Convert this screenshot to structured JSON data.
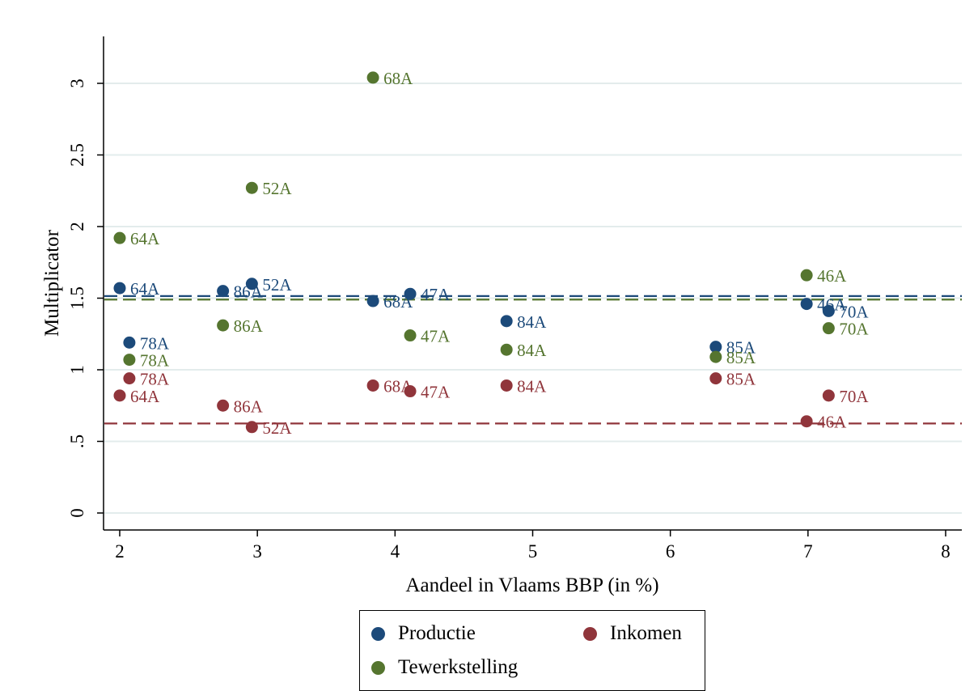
{
  "chart_data": {
    "type": "scatter",
    "title": "",
    "xlabel": "Aandeel in Vlaams BBP (in %)",
    "ylabel": "Multiplicator",
    "xlim": [
      1.9,
      8.1
    ],
    "ylim": [
      -0.1,
      3.3
    ],
    "xticks": [
      2,
      3,
      4,
      5,
      6,
      7,
      8
    ],
    "xtick_labels": [
      "2",
      "3",
      "4",
      "5",
      "6",
      "7",
      "8"
    ],
    "yticks": [
      0,
      0.5,
      1,
      1.5,
      2,
      2.5,
      3
    ],
    "ytick_labels": [
      "0",
      ".5",
      "1",
      "1.5",
      "2",
      "2.5",
      "3"
    ],
    "grid": "horizontal",
    "legend_position": "bottom",
    "series": [
      {
        "name": "Productie",
        "color": "#1c4a7a",
        "mean_line": 1.515,
        "points": [
          {
            "label": "64A",
            "x": 2.0,
            "y": 1.57
          },
          {
            "label": "78A",
            "x": 2.07,
            "y": 1.19
          },
          {
            "label": "86A",
            "x": 2.75,
            "y": 1.55
          },
          {
            "label": "52A",
            "x": 2.96,
            "y": 1.6
          },
          {
            "label": "68A",
            "x": 3.84,
            "y": 1.48
          },
          {
            "label": "47A",
            "x": 4.11,
            "y": 1.53
          },
          {
            "label": "84A",
            "x": 4.81,
            "y": 1.34
          },
          {
            "label": "85A",
            "x": 6.33,
            "y": 1.16
          },
          {
            "label": "46A",
            "x": 6.99,
            "y": 1.46
          },
          {
            "label": "70A",
            "x": 7.15,
            "y": 1.41
          }
        ]
      },
      {
        "name": "Inkomen",
        "color": "#90353b",
        "mean_line": 0.625,
        "points": [
          {
            "label": "64A",
            "x": 2.0,
            "y": 0.82
          },
          {
            "label": "78A",
            "x": 2.07,
            "y": 0.94
          },
          {
            "label": "86A",
            "x": 2.75,
            "y": 0.75
          },
          {
            "label": "52A",
            "x": 2.96,
            "y": 0.6
          },
          {
            "label": "68A",
            "x": 3.84,
            "y": 0.89
          },
          {
            "label": "47A",
            "x": 4.11,
            "y": 0.85
          },
          {
            "label": "84A",
            "x": 4.81,
            "y": 0.89
          },
          {
            "label": "85A",
            "x": 6.33,
            "y": 0.94
          },
          {
            "label": "46A",
            "x": 6.99,
            "y": 0.64
          },
          {
            "label": "70A",
            "x": 7.15,
            "y": 0.82
          }
        ]
      },
      {
        "name": "Tewerkstelling",
        "color": "#55752f",
        "mean_line": 1.49,
        "points": [
          {
            "label": "64A",
            "x": 2.0,
            "y": 1.92
          },
          {
            "label": "78A",
            "x": 2.07,
            "y": 1.07
          },
          {
            "label": "86A",
            "x": 2.75,
            "y": 1.31
          },
          {
            "label": "52A",
            "x": 2.96,
            "y": 2.27
          },
          {
            "label": "68A",
            "x": 3.84,
            "y": 3.04
          },
          {
            "label": "47A",
            "x": 4.11,
            "y": 1.24
          },
          {
            "label": "84A",
            "x": 4.81,
            "y": 1.14
          },
          {
            "label": "85A",
            "x": 6.33,
            "y": 1.09
          },
          {
            "label": "46A",
            "x": 6.99,
            "y": 1.66
          },
          {
            "label": "70A",
            "x": 7.15,
            "y": 1.29
          }
        ]
      }
    ]
  },
  "legend": {
    "productie": "Productie",
    "inkomen": "Inkomen",
    "tewerkstelling": "Tewerkstelling"
  }
}
